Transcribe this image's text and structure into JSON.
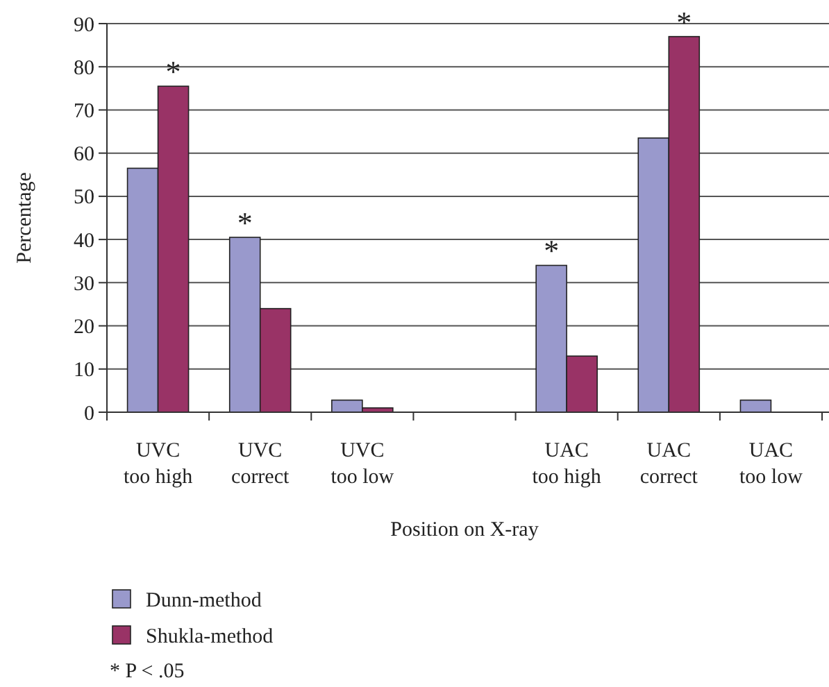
{
  "chart_data": {
    "type": "bar",
    "xlabel": "Position on X-ray",
    "ylabel": "Percentage",
    "categories": [
      "UVC\ntoo high",
      "UVC\ncorrect",
      "UVC\ntoo low",
      null,
      "UAC\ntoo high",
      "UAC\ncorrect",
      "UAC\ntoo low"
    ],
    "series": [
      {
        "name": "Dunn-method",
        "color": "#9999cc",
        "values": [
          56.5,
          40.5,
          2.8,
          null,
          34,
          63.5,
          2.8
        ]
      },
      {
        "name": "Shukla-method",
        "color": "#993366",
        "values": [
          75.5,
          24,
          1,
          null,
          13,
          87,
          null
        ]
      }
    ],
    "ylim": [
      0,
      90
    ],
    "yticks": [
      0,
      10,
      20,
      30,
      40,
      50,
      60,
      70,
      80,
      90
    ],
    "grid": "y",
    "legend": "bottom",
    "annotations": [
      {
        "text": "*",
        "x": "UVC\ntoo high",
        "y": 75.5
      },
      {
        "text": "*",
        "x": "UVC\ncorrect",
        "y": 40.5
      },
      {
        "text": "*",
        "x": "UAC\ntoo high",
        "y": 34
      },
      {
        "text": "*",
        "x": "UAC\ncorrect",
        "y": 87
      },
      "* P < .05"
    ]
  }
}
